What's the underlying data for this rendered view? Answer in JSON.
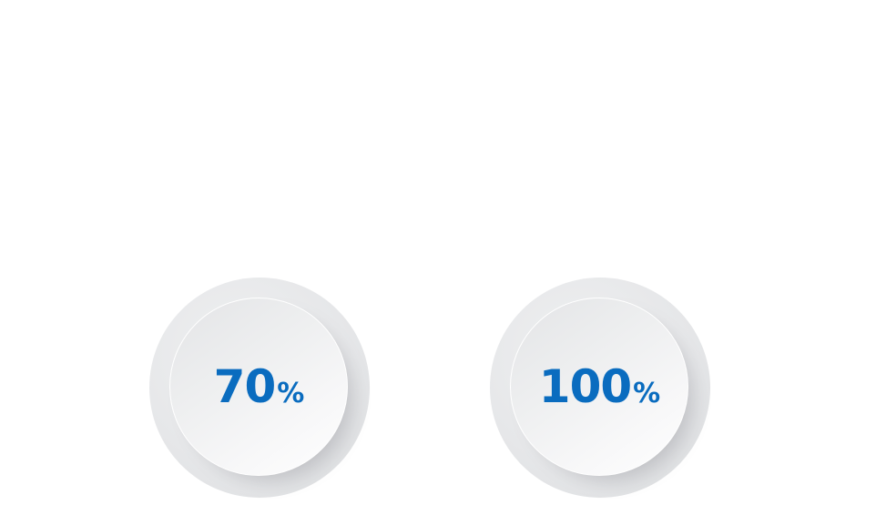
{
  "badges": [
    {
      "number": "70",
      "unit": "%",
      "percent": 70
    },
    {
      "number": "100",
      "unit": "%",
      "percent": 100
    }
  ],
  "colors": {
    "accent": "#0a6cbf",
    "ring": "#e6e7e9",
    "background": "#ffffff"
  }
}
